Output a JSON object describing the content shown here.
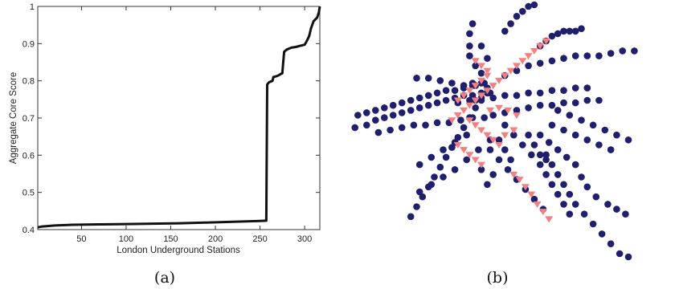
{
  "chart_data": [
    {
      "type": "line",
      "panel_label": "(a)",
      "xlabel": "London Underground Stations",
      "ylabel": "Aggregate Core Score",
      "xlim": [
        1,
        317
      ],
      "ylim": [
        0.4,
        1.0
      ],
      "xticks": [
        "50",
        "100",
        "150",
        "200",
        "250",
        "300"
      ],
      "yticks": [
        "0.4",
        "0.5",
        "0.6",
        "0.7",
        "0.8",
        "0.9",
        "1"
      ],
      "grid": false,
      "colors": {
        "line": "#111111"
      },
      "series": [
        {
          "x": [
            1,
            5,
            20,
            40,
            70,
            100,
            130,
            160,
            190,
            220,
            250,
            257,
            258,
            260,
            264,
            265,
            268,
            271,
            273,
            275,
            277,
            280,
            285,
            290,
            295,
            300,
            302,
            305,
            307,
            310,
            312,
            314,
            316,
            317
          ],
          "y": [
            0.406,
            0.408,
            0.411,
            0.413,
            0.414,
            0.415,
            0.416,
            0.417,
            0.419,
            0.421,
            0.423,
            0.424,
            0.79,
            0.796,
            0.8,
            0.81,
            0.812,
            0.815,
            0.818,
            0.82,
            0.878,
            0.884,
            0.889,
            0.891,
            0.894,
            0.897,
            0.905,
            0.92,
            0.94,
            0.96,
            0.965,
            0.97,
            0.985,
            1.0
          ]
        }
      ]
    },
    {
      "type": "scatter",
      "panel_label": "(b)",
      "axes_visible": false,
      "xlim": [
        0,
        100
      ],
      "ylim": [
        0,
        100
      ],
      "colors": {
        "periphery": "#1f1f6e",
        "core": "#f28080"
      },
      "series": [
        {
          "marker": "circle",
          "points": [
            [
              1,
              51
            ],
            [
              5,
              52
            ],
            [
              8,
              54
            ],
            [
              11,
              55
            ],
            [
              14,
              56
            ],
            [
              17,
              57
            ],
            [
              20,
              58
            ],
            [
              23,
              59
            ],
            [
              26,
              60
            ],
            [
              29,
              61
            ],
            [
              32,
              62
            ],
            [
              35,
              63
            ],
            [
              38,
              64
            ],
            [
              41,
              64
            ],
            [
              44,
              65
            ],
            [
              47,
              65
            ],
            [
              2,
              56
            ],
            [
              5,
              57
            ],
            [
              8,
              58
            ],
            [
              11,
              59
            ],
            [
              14,
              60
            ],
            [
              17,
              61
            ],
            [
              20,
              62
            ],
            [
              23,
              63
            ],
            [
              26,
              64
            ],
            [
              29,
              65
            ],
            [
              32,
              66
            ],
            [
              35,
              66
            ],
            [
              38,
              67
            ],
            [
              41,
              68
            ],
            [
              44,
              69
            ],
            [
              9,
              49
            ],
            [
              13,
              50
            ],
            [
              17,
              51
            ],
            [
              21,
              52
            ],
            [
              25,
              52
            ],
            [
              29,
              53
            ],
            [
              33,
              53
            ],
            [
              37,
              54
            ],
            [
              41,
              55
            ],
            [
              45,
              55
            ],
            [
              20,
              15
            ],
            [
              22,
              19
            ],
            [
              24,
              23
            ],
            [
              26,
              27
            ],
            [
              28,
              31
            ],
            [
              30,
              35
            ],
            [
              32,
              39
            ],
            [
              34,
              43
            ],
            [
              36,
              47
            ],
            [
              38,
              51
            ],
            [
              40,
              55
            ],
            [
              42,
              59
            ],
            [
              44,
              63
            ],
            [
              23,
              25
            ],
            [
              27,
              28
            ],
            [
              31,
              31
            ],
            [
              35,
              34
            ],
            [
              39,
              38
            ],
            [
              43,
              42
            ],
            [
              47,
              46
            ],
            [
              23,
              36
            ],
            [
              27,
              39
            ],
            [
              31,
              42
            ],
            [
              35,
              45
            ],
            [
              39,
              48
            ],
            [
              22,
              71
            ],
            [
              26,
              71
            ],
            [
              30,
              70
            ],
            [
              34,
              69
            ],
            [
              38,
              68
            ],
            [
              42,
              68
            ],
            [
              46,
              67
            ],
            [
              36,
              61
            ],
            [
              40,
              62
            ],
            [
              44,
              62
            ],
            [
              48,
              63
            ],
            [
              52,
              64
            ],
            [
              56,
              64
            ],
            [
              60,
              65
            ],
            [
              64,
              65
            ],
            [
              68,
              66
            ],
            [
              72,
              66
            ],
            [
              76,
              67
            ],
            [
              80,
              67
            ],
            [
              48,
              56
            ],
            [
              52,
              57
            ],
            [
              56,
              58
            ],
            [
              60,
              59
            ],
            [
              64,
              60
            ],
            [
              68,
              60
            ],
            [
              72,
              61
            ],
            [
              76,
              61
            ],
            [
              80,
              62
            ],
            [
              84,
              62
            ],
            [
              40,
              80
            ],
            [
              40,
              84
            ],
            [
              40,
              89
            ],
            [
              41,
              93
            ],
            [
              44,
              84
            ],
            [
              46,
              79
            ],
            [
              42,
              76
            ],
            [
              44,
              73
            ],
            [
              41,
              69
            ],
            [
              45,
              69
            ],
            [
              46,
              65
            ],
            [
              42,
              62
            ],
            [
              52,
              72
            ],
            [
              56,
              74
            ],
            [
              60,
              76
            ],
            [
              64,
              77
            ],
            [
              68,
              78
            ],
            [
              72,
              79
            ],
            [
              76,
              80
            ],
            [
              80,
              80
            ],
            [
              84,
              80
            ],
            [
              88,
              81
            ],
            [
              92,
              82
            ],
            [
              96,
              82
            ],
            [
              52,
              90
            ],
            [
              54,
              93
            ],
            [
              56,
              96
            ],
            [
              58,
              98
            ],
            [
              60,
              100
            ],
            [
              62,
              102
            ],
            [
              64,
              84
            ],
            [
              66,
              86
            ],
            [
              68,
              88
            ],
            [
              70,
              89
            ],
            [
              72,
              90
            ],
            [
              74,
              90
            ],
            [
              76,
              90
            ],
            [
              78,
              91
            ],
            [
              70,
              58
            ],
            [
              74,
              56
            ],
            [
              78,
              54
            ],
            [
              82,
              52
            ],
            [
              86,
              50
            ],
            [
              90,
              48
            ],
            [
              94,
              46
            ],
            [
              52,
              52
            ],
            [
              55,
              48
            ],
            [
              58,
              44
            ],
            [
              61,
              40
            ],
            [
              64,
              36
            ],
            [
              66,
              32
            ],
            [
              68,
              28
            ],
            [
              70,
              24
            ],
            [
              72,
              20
            ],
            [
              74,
              16
            ],
            [
              47,
              42
            ],
            [
              50,
              38
            ],
            [
              53,
              34
            ],
            [
              56,
              30
            ],
            [
              59,
              26
            ],
            [
              62,
              22
            ],
            [
              65,
              18
            ],
            [
              66,
              40
            ],
            [
              68,
              36
            ],
            [
              70,
              32
            ],
            [
              72,
              28
            ],
            [
              74,
              24
            ],
            [
              76,
              20
            ],
            [
              79,
              16
            ],
            [
              82,
              12
            ],
            [
              85,
              8
            ],
            [
              88,
              4
            ],
            [
              91,
              0
            ],
            [
              94,
              -4
            ],
            [
              68,
              52
            ],
            [
              72,
              50
            ],
            [
              76,
              48
            ],
            [
              80,
              46
            ],
            [
              84,
              44
            ],
            [
              88,
              42
            ],
            [
              64,
              48
            ],
            [
              67,
              45
            ],
            [
              70,
              42
            ],
            [
              73,
              39
            ],
            [
              76,
              36
            ],
            [
              78,
              31
            ],
            [
              80,
              27
            ],
            [
              83,
              23
            ],
            [
              87,
              20
            ],
            [
              90,
              18
            ],
            [
              93,
              16
            ],
            [
              60,
              48
            ],
            [
              62,
              44
            ],
            [
              64,
              40
            ],
            [
              66,
              38
            ],
            [
              50,
              46
            ],
            [
              52,
              42
            ],
            [
              54,
              38
            ],
            [
              48,
              32
            ],
            [
              46,
              28
            ],
            [
              44,
              34
            ]
          ]
        },
        {
          "marker": "triangle",
          "points": [
            [
              34,
              54
            ],
            [
              36,
              56
            ],
            [
              38,
              58
            ],
            [
              40,
              60
            ],
            [
              42,
              62
            ],
            [
              44,
              64
            ],
            [
              46,
              66
            ],
            [
              48,
              68
            ],
            [
              50,
              70
            ],
            [
              52,
              72
            ],
            [
              54,
              74
            ],
            [
              56,
              76
            ],
            [
              58,
              78
            ],
            [
              60,
              80
            ],
            [
              62,
              82
            ],
            [
              64,
              84
            ],
            [
              66,
              86
            ],
            [
              36,
              62
            ],
            [
              38,
              64
            ],
            [
              40,
              66
            ],
            [
              42,
              68
            ],
            [
              44,
              70
            ],
            [
              46,
              72
            ],
            [
              40,
              54
            ],
            [
              42,
              52
            ],
            [
              44,
              50
            ],
            [
              46,
              48
            ],
            [
              48,
              46
            ],
            [
              50,
              44
            ],
            [
              36,
              44
            ],
            [
              38,
              42
            ],
            [
              40,
              40
            ],
            [
              42,
              38
            ],
            [
              44,
              36
            ],
            [
              47,
              58
            ],
            [
              50,
              59
            ],
            [
              53,
              58
            ],
            [
              56,
              56
            ],
            [
              55,
              50
            ],
            [
              52,
              48
            ],
            [
              55,
              32
            ],
            [
              57,
              30
            ],
            [
              59,
              27
            ],
            [
              61,
              24
            ],
            [
              63,
              20
            ],
            [
              65,
              17
            ],
            [
              67,
              14
            ],
            [
              42,
              78
            ],
            [
              44,
              76
            ],
            [
              46,
              74
            ]
          ]
        }
      ]
    }
  ]
}
